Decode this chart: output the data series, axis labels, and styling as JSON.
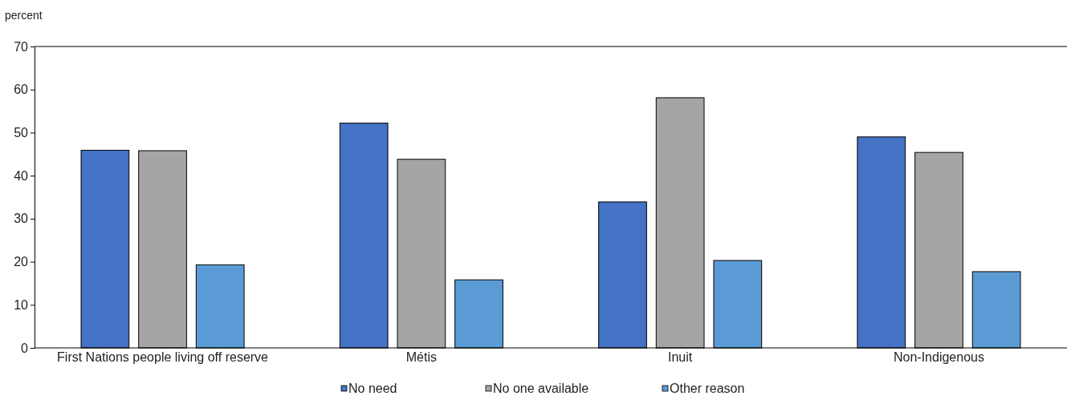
{
  "chart_data": {
    "type": "bar",
    "ylabel": "percent",
    "categories": [
      "First Nations people living off reserve",
      "Métis",
      "Inuit",
      "Non-Indigenous"
    ],
    "series": [
      {
        "name": "No need",
        "color": "#4472c4",
        "values": [
          45.9,
          52.2,
          33.9,
          49.0
        ]
      },
      {
        "name": "No one available",
        "color": "#a5a5a5",
        "values": [
          45.8,
          43.8,
          58.1,
          45.4
        ]
      },
      {
        "name": "Other reason",
        "color": "#5b9bd5",
        "values": [
          19.3,
          15.8,
          20.3,
          17.7
        ]
      }
    ],
    "ylim": [
      0,
      70
    ],
    "yticks": [
      0,
      10,
      20,
      30,
      40,
      50,
      60,
      70
    ],
    "grid": false,
    "legend": "bottom"
  }
}
